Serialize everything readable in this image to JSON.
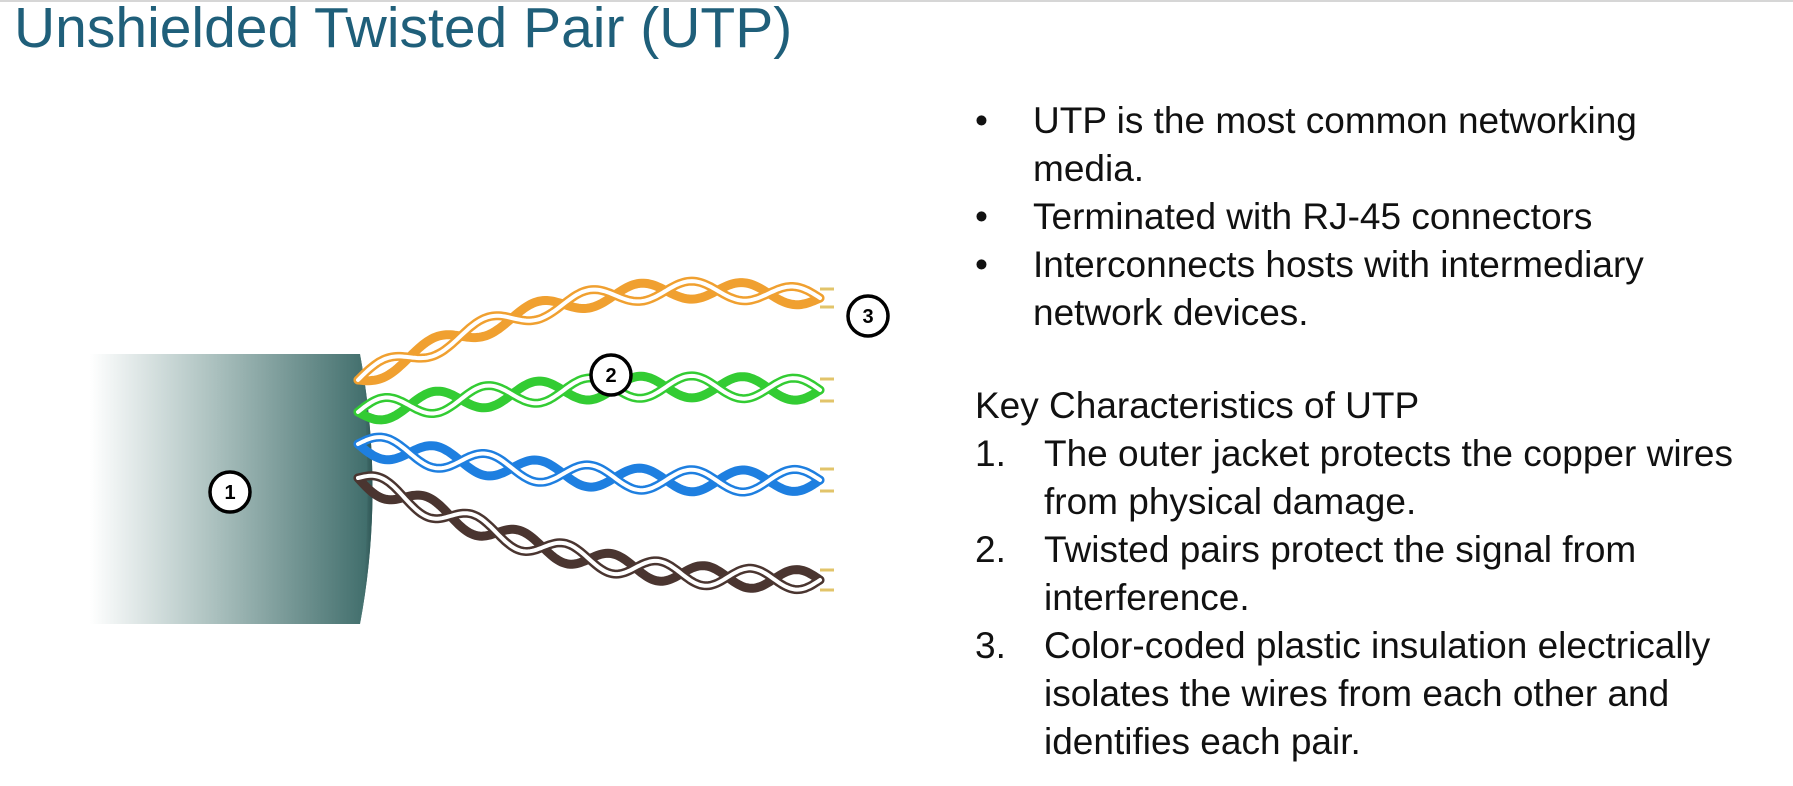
{
  "slide": {
    "title": "Unshielded Twisted Pair (UTP)"
  },
  "diagram": {
    "callouts": [
      "1",
      "2",
      "3"
    ],
    "colors": {
      "jacket_dark": "#3d6b69",
      "orange": "#f0a030",
      "green": "#33cc33",
      "blue": "#1e7fe0",
      "brown": "#4a3530",
      "title": "#1f5f7a"
    }
  },
  "bullets": [
    "UTP is the most common networking media.",
    "Terminated with RJ-45 connectors",
    "Interconnects hosts with intermediary network devices."
  ],
  "key_characteristics": {
    "heading": "Key Characteristics of UTP",
    "items": [
      {
        "num": "1.",
        "text": "The outer jacket protects the copper wires from physical damage."
      },
      {
        "num": "2.",
        "text": "Twisted pairs protect the signal from interference."
      },
      {
        "num": "3.",
        "text": "Color-coded plastic insulation electrically isolates the wires from each other and identifies each pair."
      }
    ]
  }
}
